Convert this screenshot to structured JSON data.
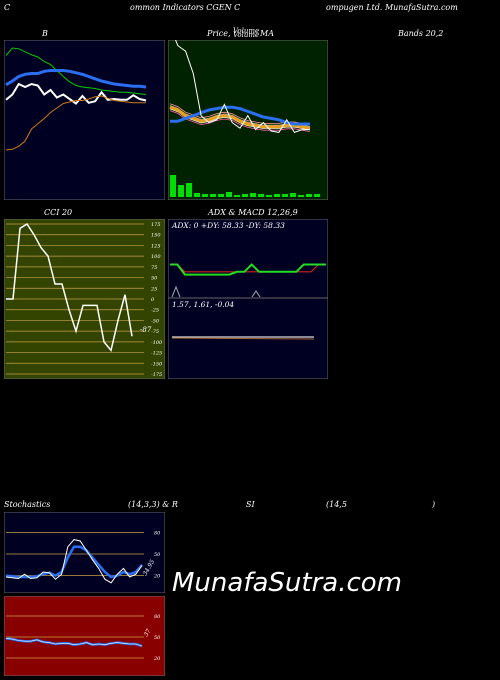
{
  "header": {
    "left": "C",
    "middle": "ommon  Indicators CGEN  C",
    "right": "ompugen  Ltd. MunafaSutra.com"
  },
  "titles": {
    "bollinger": "B",
    "price_a": "Price,  ",
    "price_b": "Volume",
    "price_c": "Volume",
    "price_d": "  MA",
    "bands": "Bands 20,2",
    "cci": "CCI 20",
    "adx_macd": "ADX  & MACD 12,26,9",
    "stoch_a": "Stochastics",
    "stoch_b": "(14,3,3) & R",
    "stoch_c": "SI",
    "stoch_d": "(14,5",
    "stoch_e": ")"
  },
  "adx_text": "ADX: 0  +DY: 58.33 -DY: 58.33",
  "macd_text": "1.57,  1.61,  -0.04",
  "cci_last": "-87",
  "stoch_last": "34.95",
  "rsi_last": "37",
  "watermark": "MunafaSutra.com",
  "colors": {
    "bg": "#000000",
    "bb_bg": "#000022",
    "price_bg": "#002200",
    "cci_bg": "#334400",
    "red_bg": "#880000",
    "blue": "#2a6ff0",
    "green": "#00dd00",
    "orange": "#cc7a1a"
  },
  "chart_data": [
    {
      "type": "line",
      "title": "B",
      "series": [
        {
          "values": [
            8.6,
            9.6,
            9.5,
            9.1,
            8.7,
            8.4,
            7.8,
            7.4,
            6.6,
            5.8,
            5.1,
            4.6,
            4.4,
            4.3,
            4.2,
            4.0,
            3.9,
            3.8,
            3.7,
            3.7,
            3.6,
            3.5,
            3.4
          ]
        },
        {
          "values": [
            4.7,
            5.2,
            5.8,
            6.1,
            6.2,
            6.2,
            6.5,
            6.6,
            6.6,
            6.6,
            6.5,
            6.3,
            6.1,
            5.8,
            5.5,
            5.2,
            5.0,
            4.8,
            4.7,
            4.6,
            4.5,
            4.5,
            4.4
          ]
        },
        {
          "values": [
            2.7,
            3.4,
            4.8,
            4.4,
            4.8,
            4.6,
            3.4,
            4.0,
            3.0,
            3.4,
            2.8,
            2.2,
            3.2,
            2.3,
            2.5,
            3.7,
            2.7,
            2.8,
            2.7,
            2.7,
            3.3,
            2.8,
            2.6
          ]
        },
        {
          "values": [
            -4.0,
            -3.9,
            -3.5,
            -2.8,
            -1.2,
            -0.5,
            0.2,
            1.0,
            1.6,
            2.2,
            2.4,
            2.6,
            2.6,
            2.8,
            3.1,
            3.2,
            2.9,
            2.6,
            2.5,
            2.4,
            2.3,
            2.3,
            2.3
          ]
        }
      ]
    },
    {
      "type": "line",
      "title": "Price,  Volume  MA",
      "series": [
        {
          "values": [
            4.2,
            4.0,
            3.6,
            3.4,
            3.2,
            3.3,
            3.5,
            3.6,
            3.5,
            3.2,
            3.0,
            2.9,
            2.8,
            2.8,
            2.8,
            2.9,
            2.9,
            2.8,
            2.7
          ]
        },
        {
          "values": [
            3.2,
            3.2,
            3.4,
            3.6,
            3.8,
            4.0,
            4.1,
            4.2,
            4.2,
            4.1,
            3.9,
            3.7,
            3.5,
            3.4,
            3.3,
            3.1,
            3.0,
            3.0,
            3.0
          ]
        },
        {
          "values": [
            10.0,
            8.6,
            8.2,
            6.6,
            3.6,
            3.1,
            3.3,
            4.4,
            3.1,
            2.7,
            3.6,
            2.6,
            3.1,
            2.5,
            2.4,
            3.3,
            2.4,
            2.6,
            2.6
          ]
        }
      ],
      "volume": [
        22,
        12,
        14,
        4,
        3,
        3,
        3,
        5,
        2,
        3,
        4,
        3,
        2,
        3,
        3,
        4,
        2,
        3,
        3
      ]
    },
    {
      "type": "line",
      "title": "CCI 20",
      "yticks": [
        175,
        150,
        125,
        100,
        75,
        50,
        25,
        0,
        -25,
        -50,
        -75,
        -100,
        -125,
        -150,
        -175
      ],
      "ylim": [
        -185,
        185
      ],
      "series": [
        {
          "values": [
            0,
            0,
            165,
            175,
            150,
            120,
            100,
            35,
            35,
            -25,
            -75,
            -15,
            -15,
            -15,
            -100,
            -120,
            -50,
            10,
            -87
          ]
        }
      ]
    },
    {
      "type": "line",
      "title": "ADX  & MACD 12,26,9",
      "series": [
        {
          "name": "ADX",
          "values": [
            0,
            0,
            0,
            0,
            0,
            0,
            0,
            0,
            0,
            0,
            0,
            0,
            0,
            0,
            0
          ]
        },
        {
          "name": "+DY",
          "values": [
            58,
            58,
            40,
            40,
            40,
            40,
            40,
            40,
            40,
            45,
            45,
            58,
            45,
            45,
            45,
            45,
            45,
            45,
            58,
            58,
            58,
            58
          ]
        },
        {
          "name": "-DY",
          "values": [
            58,
            58,
            45,
            45,
            45,
            45,
            45,
            45,
            45,
            45,
            45,
            45,
            45,
            45,
            45,
            45,
            45,
            45,
            45,
            45,
            58,
            58
          ]
        }
      ]
    },
    {
      "type": "line",
      "title": "Stochastics (14,3,3)",
      "yticks": [
        80,
        50,
        20
      ],
      "ylim": [
        0,
        100
      ],
      "series": [
        {
          "values": [
            18,
            17,
            16,
            22,
            16,
            17,
            25,
            24,
            15,
            22,
            60,
            70,
            68,
            55,
            42,
            30,
            15,
            10,
            22,
            30,
            18,
            22,
            34
          ]
        },
        {
          "values": [
            20,
            19,
            18,
            18,
            18,
            19,
            22,
            24,
            20,
            25,
            45,
            60,
            60,
            55,
            45,
            35,
            25,
            18,
            20,
            25,
            22,
            25,
            34.95
          ]
        }
      ]
    },
    {
      "type": "line",
      "title": "RSI (14,5)",
      "yticks": [
        80,
        50,
        20
      ],
      "ylim": [
        0,
        100
      ],
      "series": [
        {
          "values": [
            48,
            47,
            45,
            44,
            44,
            46,
            43,
            42,
            40,
            41,
            41,
            39,
            40,
            42,
            39,
            40,
            39,
            41,
            42,
            41,
            40,
            40,
            37
          ]
        }
      ]
    }
  ]
}
